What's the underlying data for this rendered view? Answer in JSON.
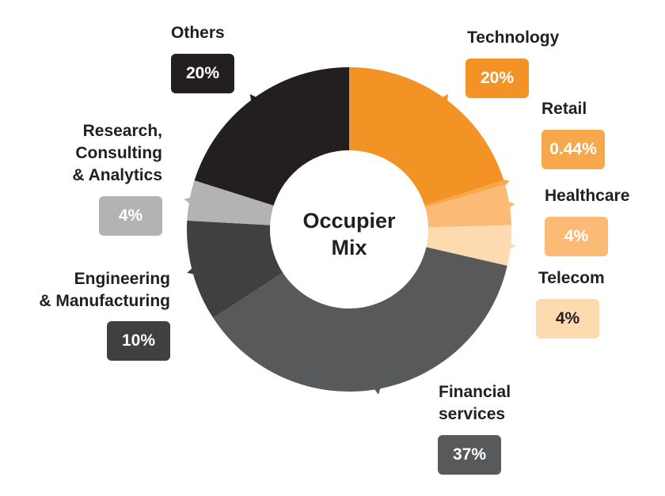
{
  "chart_data": {
    "type": "pie",
    "variant": "donut",
    "title": "Occupier Mix",
    "title_lines": [
      "Occupier",
      "Mix"
    ],
    "slices": [
      {
        "label": "Technology",
        "label_lines": [
          "Technology"
        ],
        "value": 20,
        "display": "20%",
        "color": "#F39325",
        "text_color": "#FFFFFF"
      },
      {
        "label": "Retail",
        "label_lines": [
          "Retail"
        ],
        "value": 0.44,
        "display": "0.44%",
        "color": "#F7A84A",
        "text_color": "#FFFFFF"
      },
      {
        "label": "Healthcare",
        "label_lines": [
          "Healthcare"
        ],
        "value": 4,
        "display": "4%",
        "color": "#FBBB76",
        "text_color": "#FFFFFF"
      },
      {
        "label": "Telecom",
        "label_lines": [
          "Telecom"
        ],
        "value": 4,
        "display": "4%",
        "color": "#FDDAB0",
        "text_color": "#231F20"
      },
      {
        "label": "Financial services",
        "label_lines": [
          "Financial",
          "services"
        ],
        "value": 37,
        "display": "37%",
        "color": "#58595B",
        "text_color": "#FFFFFF"
      },
      {
        "label": "Engineering & Manufacturing",
        "label_lines": [
          "Engineering",
          "& Manufacturing"
        ],
        "value": 10,
        "display": "10%",
        "color": "#404041",
        "text_color": "#FFFFFF"
      },
      {
        "label": "Research, Consulting & Analytics",
        "label_lines": [
          "Research,",
          "Consulting",
          "& Analytics"
        ],
        "value": 4,
        "display": "4%",
        "color": "#B3B3B3",
        "text_color": "#FFFFFF"
      },
      {
        "label": "Others",
        "label_lines": [
          "Others"
        ],
        "value": 20,
        "display": "20%",
        "color": "#231F20",
        "text_color": "#FFFFFF"
      }
    ]
  }
}
